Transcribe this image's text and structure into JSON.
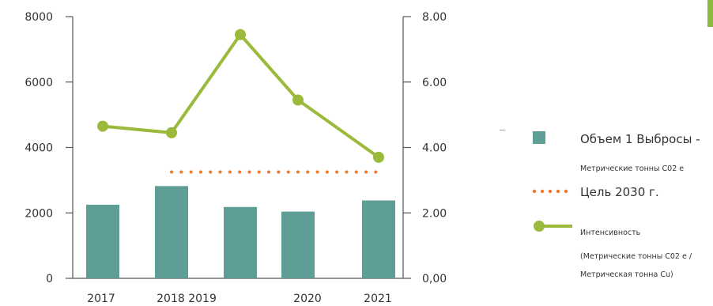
{
  "chart_data": {
    "type": "bar",
    "categories": [
      "2017",
      "2018",
      "2019",
      "2020",
      "2021"
    ],
    "x_tick_labels": [
      "2017",
      "2018 2019",
      "",
      "2020",
      "2021"
    ],
    "series": [
      {
        "name": "Объем 1 Выбросы - Метрические тонны C02 e",
        "type": "bar",
        "axis": "left",
        "values": [
          2250,
          2820,
          2180,
          2040,
          2380
        ]
      },
      {
        "name": "Интенсивность (Метрические тонны C02 e / Метрическая тонна Cu)",
        "type": "line",
        "axis": "right",
        "values": [
          4.65,
          4.45,
          7.45,
          5.45,
          3.7
        ]
      },
      {
        "name": "Цель 2030 г.",
        "type": "dotted-line",
        "axis": "left",
        "value": 3250,
        "from_category": 1,
        "to_category": 4
      }
    ],
    "y_left": {
      "ylim": [
        0,
        8000
      ],
      "ticks": [
        "0",
        "2000",
        "4000",
        "6000",
        "8000"
      ]
    },
    "y_right": {
      "ylim": [
        0,
        8
      ],
      "ticks": [
        "0,00",
        "2.00",
        "4.00",
        "6.00",
        "8.00"
      ]
    },
    "grid": false,
    "legend_position": "right"
  },
  "colors": {
    "bar": "#5f9e96",
    "line": "#9bba3c",
    "target": "#f07a2a",
    "axis": "#555555",
    "text": "#333333",
    "corner_mark": "#8db83f"
  },
  "legend": {
    "bar_title": "Объем 1 Выбросы -",
    "bar_sub": "Метрические тонны C02 e",
    "target_title": "Цель 2030 г.",
    "line_title": "Интенсивность",
    "line_sub1": "(Метрические тонны C02 e /",
    "line_sub2": "Метрическая тонна Cu)"
  }
}
